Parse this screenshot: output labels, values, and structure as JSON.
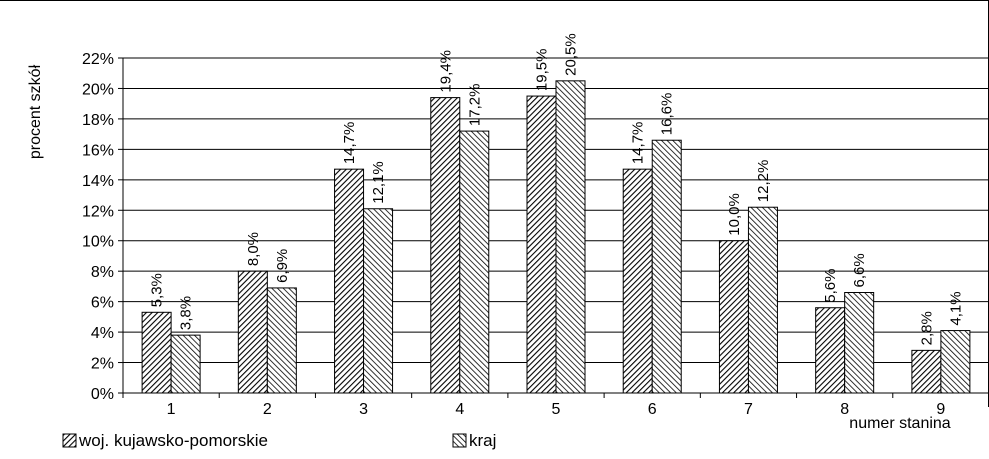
{
  "chart_data": {
    "type": "bar",
    "categories": [
      "1",
      "2",
      "3",
      "4",
      "5",
      "6",
      "7",
      "8",
      "9"
    ],
    "series": [
      {
        "name": "woj. kujawsko-pomorskie",
        "values": [
          5.3,
          8.0,
          14.7,
          19.4,
          19.5,
          14.7,
          10.0,
          5.6,
          2.8
        ],
        "labels": [
          "5,3%",
          "8,0%",
          "14,7%",
          "19,4%",
          "19,5%",
          "14,7%",
          "10,0%",
          "5,6%",
          "2,8%"
        ],
        "pattern": "diagonal-fine"
      },
      {
        "name": "kraj",
        "values": [
          3.8,
          6.9,
          12.1,
          17.2,
          20.5,
          16.6,
          12.2,
          6.6,
          4.1
        ],
        "labels": [
          "3,8%",
          "6,9%",
          "12,1%",
          "17,2%",
          "20,5%",
          "16,6%",
          "12,2%",
          "6,6%",
          "4,1%"
        ],
        "pattern": "diagonal-coarse"
      }
    ],
    "xlabel": "numer stanina",
    "ylabel": "procent szkół",
    "ylim": [
      0,
      22
    ],
    "yticks": [
      "0%",
      "2%",
      "4%",
      "6%",
      "8%",
      "10%",
      "12%",
      "14%",
      "16%",
      "18%",
      "20%",
      "22%"
    ],
    "grid": true,
    "legend_position": "bottom-left",
    "colors": {
      "bar_fill": "#ffffff",
      "bar_stroke": "#000000",
      "grid": "#000000"
    }
  }
}
